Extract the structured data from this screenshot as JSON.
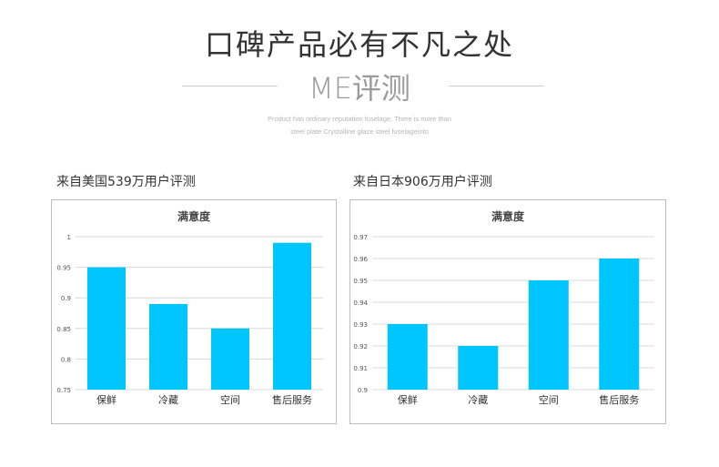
{
  "header": {
    "title": "口碑产品必有不凡之处",
    "subtitle": "ME评测",
    "desc_lines": [
      "Product has ordinary reputation fuselage, There is more than",
      "steel plate Crystalline glaze steel fuselageinto"
    ]
  },
  "sections": [
    {
      "title": "来自美国539万用户评测"
    },
    {
      "title": "来自日本906万用户评测"
    }
  ],
  "colors": {
    "bar": "#00c6ff",
    "grid": "#d9d9d9",
    "axis_text": "#555555",
    "title_text": "#444444"
  },
  "chart_data": [
    {
      "type": "bar",
      "title": "满意度",
      "categories": [
        "保鲜",
        "冷藏",
        "空间",
        "售后服务"
      ],
      "values": [
        0.95,
        0.89,
        0.85,
        0.99
      ],
      "ylim": [
        0.75,
        1
      ],
      "yticks": [
        "1",
        "0.95",
        "0.9",
        "0.85",
        "0.8",
        "0.75"
      ],
      "grid": true,
      "legend": "none"
    },
    {
      "type": "bar",
      "title": "满意度",
      "categories": [
        "保鲜",
        "冷藏",
        "空间",
        "售后服务"
      ],
      "values": [
        0.93,
        0.92,
        0.95,
        0.96
      ],
      "ylim": [
        0.9,
        0.97
      ],
      "yticks": [
        "0.97",
        "0.96",
        "0.95",
        "0.94",
        "0.93",
        "0.92",
        "0.91",
        "0.9"
      ],
      "grid": true,
      "legend": "none"
    }
  ]
}
